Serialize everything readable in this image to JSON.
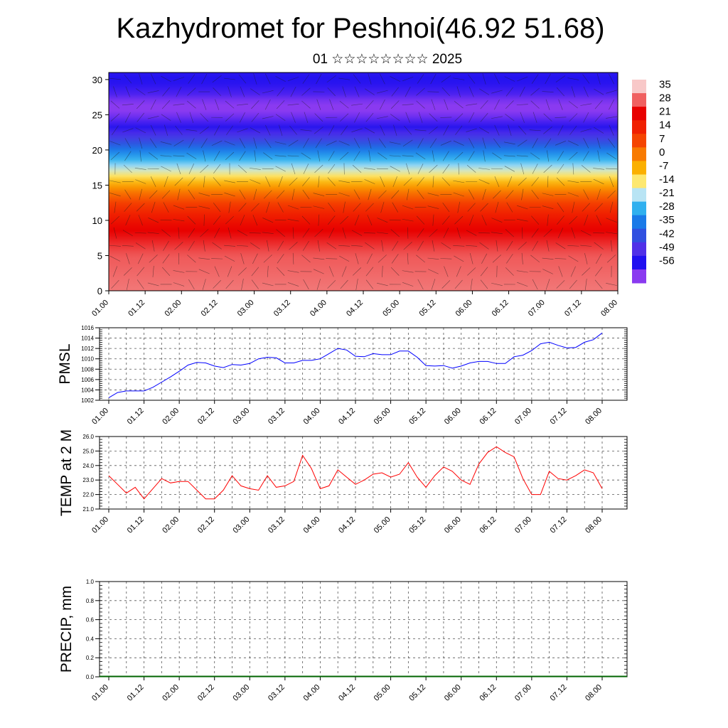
{
  "header": {
    "title": "Kazhydromet for Peshnoi(46.92 51.68)",
    "subtitle": "01 ☆☆☆☆☆☆☆☆ 2025"
  },
  "chart_data": [
    {
      "type": "heatmap",
      "title": "Kazhydromet for Peshnoi(46.92 51.68)",
      "subtitle": "01 ☆☆☆☆☆☆☆☆ 2025",
      "xlabel": "",
      "ylabel": "",
      "x_tick_labels": [
        "01.00",
        "01.12",
        "02.00",
        "02.12",
        "03.00",
        "03.12",
        "04.00",
        "04.12",
        "05.00",
        "05.12",
        "06.00",
        "06.12",
        "07.00",
        "07.12",
        "08.00"
      ],
      "y_ticks": [
        0,
        5,
        10,
        15,
        20,
        25,
        30
      ],
      "ylim": [
        0,
        31
      ],
      "colorbar": {
        "labels": [
          35,
          28,
          21,
          14,
          7,
          0,
          -7,
          -14,
          -21,
          -28,
          -35,
          -42,
          -49,
          -56
        ],
        "colors": [
          "#f8c8c8",
          "#f06060",
          "#e80000",
          "#f02000",
          "#f54500",
          "#f87a00",
          "#fbb000",
          "#fde870",
          "#b8e4f4",
          "#30b0ef",
          "#1a7ae8",
          "#3050e0",
          "#5030e8",
          "#2010f0",
          "#8a3af0"
        ]
      },
      "field_profile": {
        "heights": [
          0,
          5,
          9,
          12,
          14,
          16,
          18,
          20,
          22,
          24,
          26,
          28,
          31
        ],
        "values": [
          30,
          28,
          21,
          12,
          3,
          -8,
          -20,
          -30,
          -42,
          -52,
          -58,
          -52,
          -48
        ]
      },
      "grid": false
    },
    {
      "type": "line",
      "title": "",
      "ylabel": "PMSL",
      "x_tick_labels": [
        "01.00",
        "01.12",
        "02.00",
        "02.12",
        "03.00",
        "03.12",
        "04.00",
        "04.12",
        "05.00",
        "05.12",
        "06.00",
        "06.12",
        "07.00",
        "07.12",
        "08.00"
      ],
      "y_ticks": [
        "1002",
        "1004",
        "1006",
        "1008",
        "1010",
        "1012",
        "1014",
        "1016"
      ],
      "ylim": [
        1002,
        1016
      ],
      "grid": true,
      "color": "#0000ff",
      "values": [
        1002.5,
        1003.5,
        1003.8,
        1003.8,
        1003.8,
        1004.5,
        1005.5,
        1006.5,
        1007.6,
        1008.8,
        1009.3,
        1009.2,
        1008.6,
        1008.3,
        1008.9,
        1008.8,
        1009.1,
        1010.0,
        1010.3,
        1010.2,
        1009.2,
        1009.2,
        1009.7,
        1009.7,
        1010.0,
        1011.0,
        1012.0,
        1011.7,
        1010.5,
        1010.4,
        1011.0,
        1010.8,
        1010.8,
        1011.5,
        1011.5,
        1010.3,
        1008.7,
        1008.6,
        1008.7,
        1008.2,
        1008.6,
        1009.2,
        1009.5,
        1009.5,
        1009.1,
        1009.1,
        1010.4,
        1010.7,
        1011.6,
        1012.9,
        1013.2,
        1012.6,
        1012.1,
        1012.2,
        1013.2,
        1013.7,
        1015.0
      ]
    },
    {
      "type": "line",
      "title": "",
      "ylabel": "TEMP at 2 M",
      "x_tick_labels": [
        "01.00",
        "01.12",
        "02.00",
        "02.12",
        "03.00",
        "03.12",
        "04.00",
        "04.12",
        "05.00",
        "05.12",
        "06.00",
        "06.12",
        "07.00",
        "07.12",
        "08.00"
      ],
      "y_ticks": [
        "21.0",
        "22.0",
        "23.0",
        "24.0",
        "25.0",
        "26.0"
      ],
      "ylim": [
        21,
        26
      ],
      "grid": true,
      "color": "#ff0000",
      "values": [
        23.3,
        22.7,
        22.1,
        22.5,
        21.7,
        22.4,
        23.1,
        22.8,
        22.9,
        22.9,
        22.3,
        21.7,
        21.7,
        22.3,
        23.3,
        22.6,
        22.4,
        22.3,
        23.3,
        22.5,
        22.6,
        22.9,
        24.7,
        23.8,
        22.4,
        22.6,
        23.7,
        23.2,
        22.7,
        23.0,
        23.4,
        23.5,
        23.2,
        23.4,
        24.2,
        23.2,
        22.5,
        23.3,
        23.9,
        23.6,
        23.0,
        22.7,
        24.1,
        24.9,
        25.3,
        24.9,
        24.6,
        23.1,
        22.0,
        22.0,
        23.6,
        23.1,
        23.0,
        23.3,
        23.7,
        23.5,
        22.4
      ]
    },
    {
      "type": "bar",
      "title": "",
      "ylabel": "PRECIP, mm",
      "x_tick_labels": [
        "01.00",
        "01.12",
        "02.00",
        "02.12",
        "03.00",
        "03.12",
        "04.00",
        "04.12",
        "05.00",
        "05.12",
        "06.00",
        "06.12",
        "07.00",
        "07.12",
        "08.00"
      ],
      "y_ticks": [
        "0.0",
        "0.2",
        "0.4",
        "0.6",
        "0.8",
        "1.0"
      ],
      "ylim": [
        0,
        1
      ],
      "grid": true,
      "color": "#006400",
      "values": [
        0,
        0,
        0,
        0,
        0,
        0,
        0,
        0,
        0,
        0,
        0,
        0,
        0,
        0,
        0,
        0,
        0,
        0,
        0,
        0,
        0,
        0,
        0,
        0,
        0,
        0,
        0,
        0,
        0,
        0,
        0,
        0,
        0,
        0,
        0,
        0,
        0,
        0,
        0,
        0,
        0,
        0,
        0,
        0,
        0,
        0,
        0,
        0,
        0,
        0,
        0,
        0,
        0,
        0,
        0,
        0,
        0
      ]
    }
  ]
}
